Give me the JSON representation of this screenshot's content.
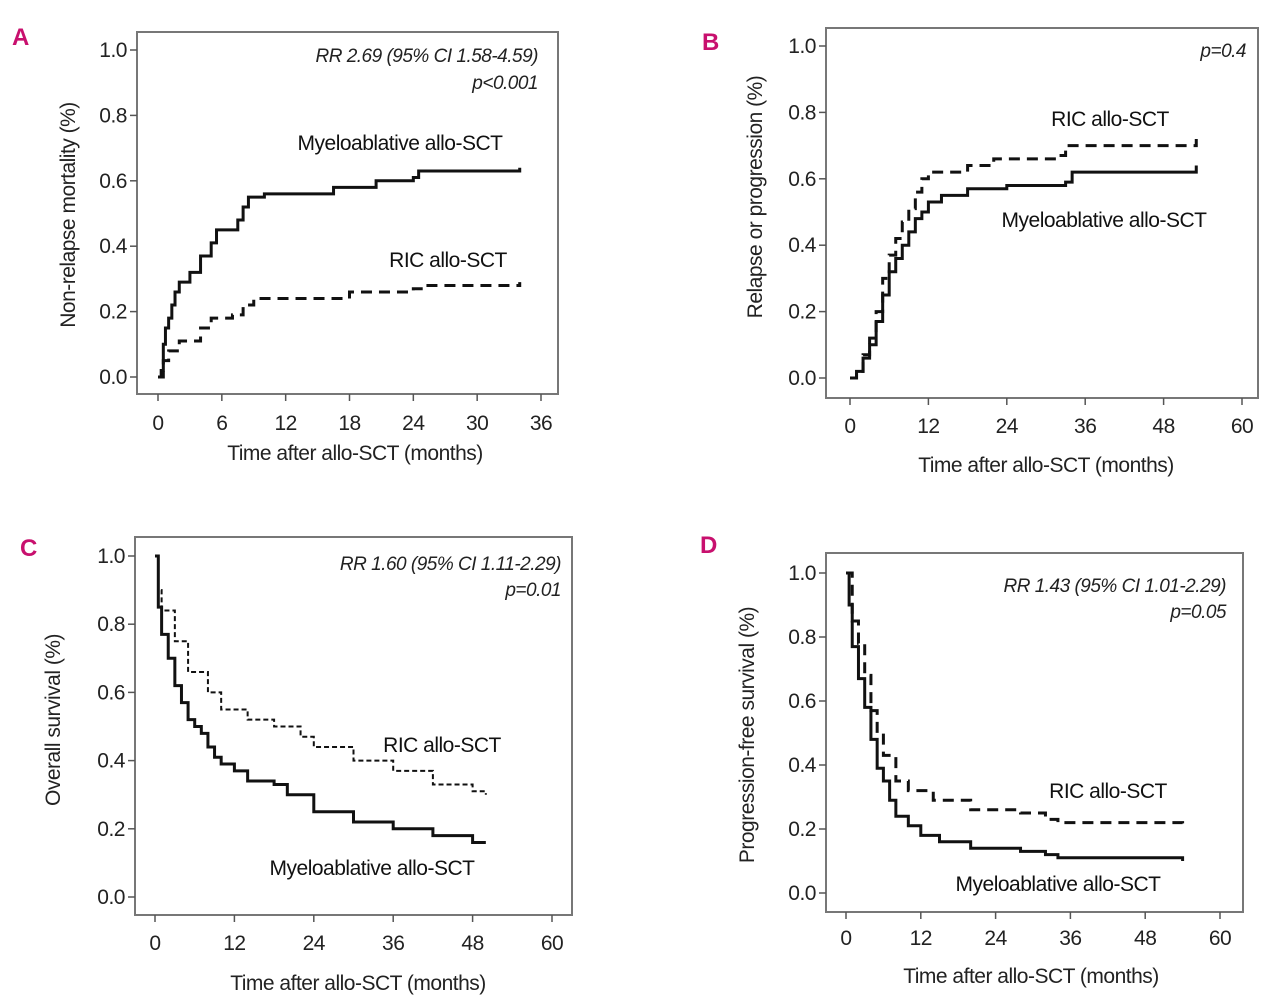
{
  "chart_data": [
    {
      "panel": "A",
      "type": "line",
      "xlabel": "Time after allo-SCT (months)",
      "ylabel": "Non-relapse mortality (%)",
      "xlim": [
        0,
        36
      ],
      "ylim": [
        0,
        1
      ],
      "xticks": [
        "0",
        "6",
        "12",
        "18",
        "24",
        "30",
        "36"
      ],
      "yticks": [
        "0.0",
        "0.2",
        "0.4",
        "0.6",
        "0.8",
        "1.0"
      ],
      "annotations": [
        "RR 2.69 (95% CI 1.58-4.59)",
        "p<0.001"
      ],
      "grid": false,
      "series": [
        {
          "name": "Myeloablative allo-SCT",
          "style": "solid",
          "x": [
            0,
            0.3,
            0.5,
            0.7,
            1,
            1.3,
            1.6,
            2,
            3,
            4,
            5,
            5.5,
            7,
            7.5,
            8,
            8.5,
            10,
            16,
            16.5,
            20,
            20.5,
            24,
            24.5,
            34
          ],
          "y": [
            0,
            0.02,
            0.1,
            0.15,
            0.18,
            0.22,
            0.26,
            0.29,
            0.32,
            0.37,
            0.41,
            0.45,
            0.45,
            0.48,
            0.52,
            0.55,
            0.56,
            0.56,
            0.58,
            0.58,
            0.6,
            0.61,
            0.63,
            0.64
          ]
        },
        {
          "name": "RIC allo-SCT",
          "style": "dashed",
          "x": [
            0,
            0.5,
            1,
            2,
            4,
            5,
            7,
            8,
            9,
            18,
            24,
            25,
            34
          ],
          "y": [
            0,
            0.05,
            0.08,
            0.11,
            0.15,
            0.18,
            0.19,
            0.22,
            0.24,
            0.26,
            0.27,
            0.28,
            0.29
          ]
        }
      ]
    },
    {
      "panel": "B",
      "type": "line",
      "xlabel": "Time after allo-SCT (months)",
      "ylabel": "Relapse or progression (%)",
      "xlim": [
        0,
        60
      ],
      "ylim": [
        0,
        1
      ],
      "xticks": [
        "0",
        "12",
        "24",
        "36",
        "48",
        "60"
      ],
      "yticks": [
        "0.0",
        "0.2",
        "0.4",
        "0.6",
        "0.8",
        "1.0"
      ],
      "annotations": [
        "p=0.4"
      ],
      "grid": false,
      "series": [
        {
          "name": "RIC allo-SCT",
          "style": "dashed",
          "x": [
            0,
            1,
            2,
            3,
            4,
            5,
            6,
            7,
            8,
            9,
            10,
            11,
            12,
            18,
            22,
            32,
            33,
            50,
            53
          ],
          "y": [
            0,
            0.02,
            0.07,
            0.12,
            0.2,
            0.3,
            0.37,
            0.42,
            0.47,
            0.51,
            0.56,
            0.6,
            0.62,
            0.64,
            0.66,
            0.67,
            0.7,
            0.7,
            0.72
          ]
        },
        {
          "name": "Myeloablative allo-SCT",
          "style": "solid",
          "x": [
            0,
            1,
            2,
            3,
            4,
            5,
            6,
            7,
            8,
            9,
            10,
            11,
            12,
            14,
            18,
            24,
            33,
            34,
            50,
            53
          ],
          "y": [
            0,
            0.02,
            0.06,
            0.1,
            0.17,
            0.25,
            0.32,
            0.36,
            0.4,
            0.44,
            0.48,
            0.5,
            0.53,
            0.55,
            0.57,
            0.58,
            0.59,
            0.62,
            0.62,
            0.64
          ]
        }
      ]
    },
    {
      "panel": "C",
      "type": "line",
      "xlabel": "Time after allo-SCT (months)",
      "ylabel": "Overall survival (%)",
      "xlim": [
        0,
        60
      ],
      "ylim": [
        0,
        1
      ],
      "xticks": [
        "0",
        "12",
        "24",
        "36",
        "48",
        "60"
      ],
      "yticks": [
        "0.0",
        "0.2",
        "0.4",
        "0.6",
        "0.8",
        "1.0"
      ],
      "annotations": [
        "RR 1.60 (95% CI 1.11-2.29)",
        "p=0.01"
      ],
      "grid": false,
      "series": [
        {
          "name": "RIC allo-SCT",
          "style": "dotted-dashed",
          "x": [
            0,
            0.5,
            1,
            3,
            5,
            8,
            10,
            14,
            18,
            22,
            24,
            30,
            36,
            42,
            48,
            50
          ],
          "y": [
            1,
            0.9,
            0.84,
            0.75,
            0.66,
            0.6,
            0.55,
            0.52,
            0.5,
            0.47,
            0.44,
            0.4,
            0.37,
            0.33,
            0.31,
            0.3
          ]
        },
        {
          "name": "Myeloablative allo-SCT",
          "style": "solid",
          "x": [
            0,
            0.5,
            1,
            2,
            3,
            4,
            5,
            6,
            7,
            8,
            9,
            10,
            12,
            14,
            18,
            20,
            24,
            30,
            36,
            42,
            48,
            50
          ],
          "y": [
            1,
            0.85,
            0.77,
            0.7,
            0.62,
            0.57,
            0.52,
            0.5,
            0.48,
            0.44,
            0.41,
            0.39,
            0.37,
            0.34,
            0.33,
            0.3,
            0.25,
            0.22,
            0.2,
            0.18,
            0.16,
            0.16
          ]
        }
      ]
    },
    {
      "panel": "D",
      "type": "line",
      "xlabel": "Time after allo-SCT (months)",
      "ylabel": "Progression-free survival (%)",
      "xlim": [
        0,
        60
      ],
      "ylim": [
        0,
        1
      ],
      "xticks": [
        "0",
        "12",
        "24",
        "36",
        "48",
        "60"
      ],
      "yticks": [
        "0.0",
        "0.2",
        "0.4",
        "0.6",
        "0.8",
        "1.0"
      ],
      "annotations": [
        "RR 1.43 (95% CI 1.01-2.29)",
        "p=0.05"
      ],
      "grid": false,
      "series": [
        {
          "name": "RIC allo-SCT",
          "style": "dashed",
          "x": [
            0,
            1,
            2,
            3,
            4,
            5,
            6,
            8,
            10,
            14,
            20,
            28,
            32,
            34,
            54
          ],
          "y": [
            1,
            0.85,
            0.78,
            0.68,
            0.57,
            0.5,
            0.43,
            0.35,
            0.32,
            0.29,
            0.26,
            0.25,
            0.23,
            0.22,
            0.21
          ]
        },
        {
          "name": "Myeloablative allo-SCT",
          "style": "solid",
          "x": [
            0,
            0.5,
            1,
            2,
            3,
            4,
            5,
            6,
            7,
            8,
            10,
            12,
            15,
            20,
            28,
            32,
            34,
            50,
            54
          ],
          "y": [
            1,
            0.9,
            0.77,
            0.67,
            0.58,
            0.48,
            0.39,
            0.35,
            0.29,
            0.24,
            0.21,
            0.18,
            0.16,
            0.14,
            0.13,
            0.12,
            0.11,
            0.11,
            0.1
          ]
        }
      ]
    }
  ],
  "colors": {
    "panel_letter": "#c8106e",
    "line": "#111111",
    "frame": "#777777"
  }
}
